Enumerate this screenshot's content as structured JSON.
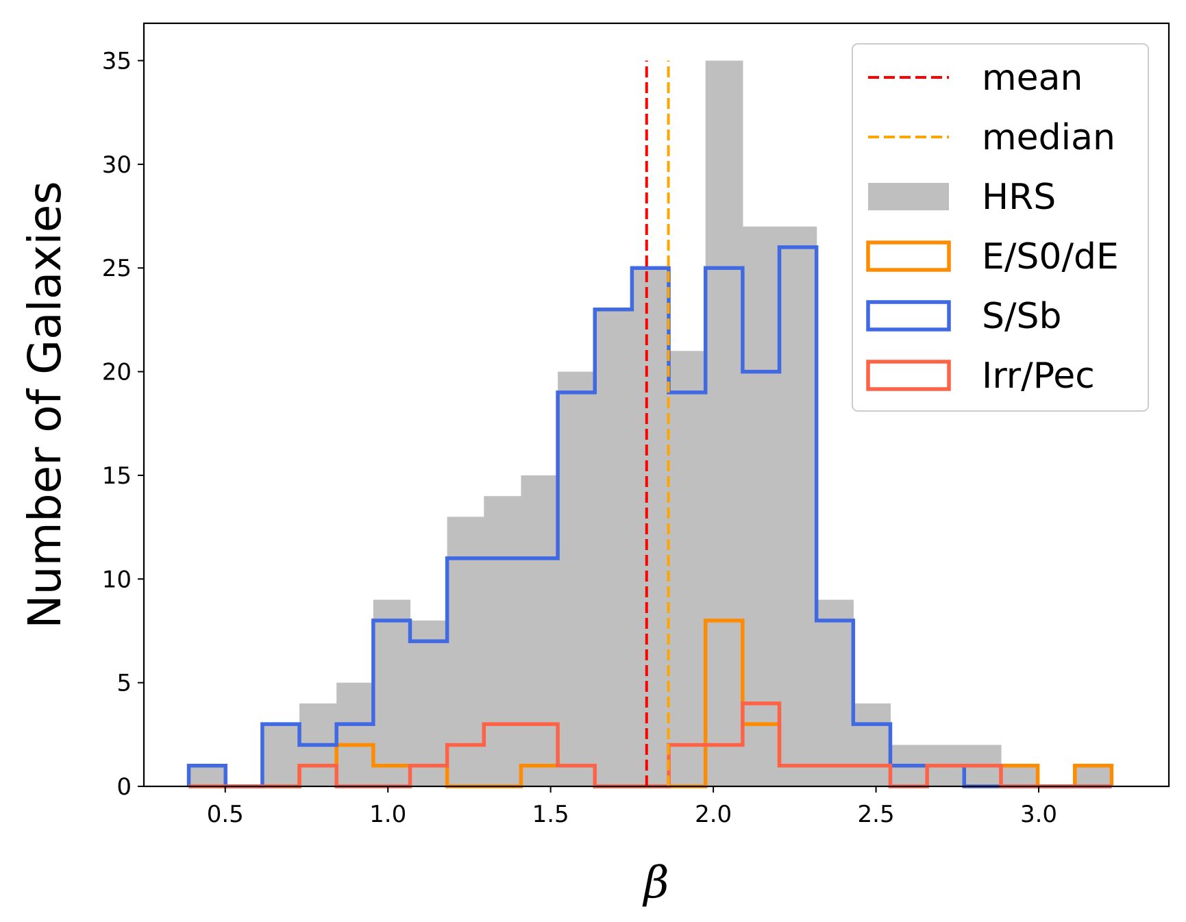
{
  "chart_data": {
    "type": "bar",
    "xlabel": "β",
    "ylabel": "Number of Galaxies",
    "xlim": [
      0.25,
      3.4
    ],
    "ylim": [
      0,
      36.8
    ],
    "x_ticks": [
      "0.5",
      "1.0",
      "1.5",
      "2.0",
      "2.5",
      "3.0"
    ],
    "x_tick_values": [
      0.5,
      1.0,
      1.5,
      2.0,
      2.5,
      3.0
    ],
    "y_ticks": [
      "0",
      "5",
      "10",
      "15",
      "20",
      "25",
      "30",
      "35"
    ],
    "y_tick_values": [
      0,
      5,
      10,
      15,
      20,
      25,
      30,
      35
    ],
    "bin_edges": [
      0.388,
      0.501,
      0.614,
      0.728,
      0.842,
      0.955,
      1.068,
      1.182,
      1.295,
      1.409,
      1.522,
      1.636,
      1.75,
      1.863,
      1.976,
      2.09,
      2.203,
      2.317,
      2.43,
      2.544,
      2.657,
      2.771,
      2.884,
      2.997,
      3.111,
      3.224
    ],
    "series": [
      {
        "name": "HRS",
        "style": "filled",
        "color": "#bfbfbf",
        "values": [
          1,
          0,
          3,
          4,
          5,
          9,
          8,
          13,
          14,
          15,
          20,
          23,
          25,
          21,
          35,
          27,
          27,
          9,
          4,
          2,
          2,
          2,
          1,
          0,
          1
        ]
      },
      {
        "name": "E/S0/dE",
        "style": "step",
        "color": "#ff8c00",
        "values": [
          0,
          0,
          0,
          1,
          2,
          1,
          1,
          0,
          0,
          1,
          1,
          0,
          0,
          0,
          8,
          3,
          1,
          1,
          1,
          1,
          1,
          1,
          1,
          0,
          1
        ]
      },
      {
        "name": "S/Sb",
        "style": "step",
        "color": "#4169e1",
        "values": [
          1,
          0,
          3,
          2,
          3,
          8,
          7,
          11,
          11,
          11,
          19,
          23,
          25,
          19,
          25,
          20,
          26,
          8,
          3,
          1,
          1,
          0,
          0,
          0,
          0
        ]
      },
      {
        "name": "Irr/Pec",
        "style": "step",
        "color": "#ff6347",
        "values": [
          0,
          0,
          0,
          1,
          0,
          0,
          1,
          2,
          3,
          3,
          1,
          0,
          0,
          2,
          2,
          4,
          1,
          1,
          1,
          0,
          1,
          1,
          0,
          0,
          0
        ]
      }
    ],
    "reference_lines": [
      {
        "name": "mean",
        "x": 1.795,
        "color": "#ff0000",
        "style": "dashed"
      },
      {
        "name": "median",
        "x": 1.862,
        "color": "#ffa500",
        "style": "dashed"
      }
    ],
    "legend": {
      "placement": "top-right",
      "entries": [
        "mean",
        "median",
        "HRS",
        "E/S0/dE",
        "S/Sb",
        "Irr/Pec"
      ]
    },
    "grid": false
  }
}
